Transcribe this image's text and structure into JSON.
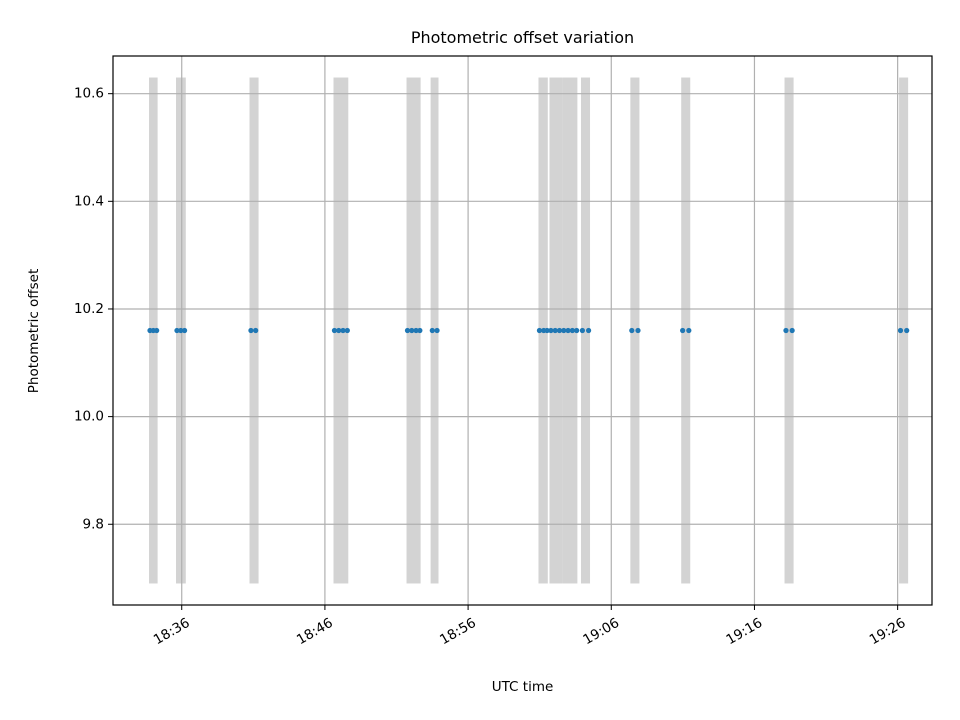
{
  "chart_data": {
    "type": "scatter",
    "title": "Photometric offset variation",
    "xlabel": "UTC time",
    "ylabel": "Photometric offset",
    "x_axis": {
      "scale": "time",
      "xlim": [
        "18:31:12",
        "19:28:24"
      ],
      "tick_labels": [
        "18:36",
        "18:46",
        "18:56",
        "19:06",
        "19:16",
        "19:26"
      ],
      "tick_label_rotation": "30 degrees"
    },
    "y_axis": {
      "ylim": [
        9.65,
        10.67
      ],
      "ticks": [
        9.8,
        10.0,
        10.2,
        10.4,
        10.6
      ],
      "tick_labels": [
        "9.8",
        "10.0",
        "10.2",
        "10.4",
        "10.6"
      ]
    },
    "grid": true,
    "colors": {
      "points": "#1f77b4",
      "bands": "#d3d3d3",
      "grid": "#b0b0b0",
      "axes": "#000000"
    },
    "bands": {
      "y_range": [
        9.69,
        10.63
      ],
      "intervals": [
        [
          "18:33:43",
          "18:34:19"
        ],
        [
          "18:35:36",
          "18:36:17"
        ],
        [
          "18:40:44",
          "18:41:22"
        ],
        [
          "18:46:36",
          "18:47:38"
        ],
        [
          "18:51:42",
          "18:52:41"
        ],
        [
          "18:53:23",
          "18:53:56"
        ],
        [
          "19:00:55",
          "19:01:34"
        ],
        [
          "19:01:41",
          "19:02:36"
        ],
        [
          "19:02:36",
          "19:03:38"
        ],
        [
          "19:03:53",
          "19:04:31"
        ],
        [
          "19:07:20",
          "19:07:58"
        ],
        [
          "19:10:53",
          "19:11:31"
        ],
        [
          "19:18:06",
          "19:18:44"
        ],
        [
          "19:26:06",
          "19:26:44"
        ]
      ]
    },
    "series": [
      {
        "points": [
          {
            "x": "18:33:47",
            "y": 10.16
          },
          {
            "x": "18:34:01",
            "y": 10.16
          },
          {
            "x": "18:34:15",
            "y": 10.16
          },
          {
            "x": "18:35:40",
            "y": 10.16
          },
          {
            "x": "18:35:56",
            "y": 10.16
          },
          {
            "x": "18:36:12",
            "y": 10.16
          },
          {
            "x": "18:40:50",
            "y": 10.16
          },
          {
            "x": "18:41:10",
            "y": 10.16
          },
          {
            "x": "18:46:40",
            "y": 10.16
          },
          {
            "x": "18:46:58",
            "y": 10.16
          },
          {
            "x": "18:47:16",
            "y": 10.16
          },
          {
            "x": "18:47:34",
            "y": 10.16
          },
          {
            "x": "18:51:46",
            "y": 10.16
          },
          {
            "x": "18:52:04",
            "y": 10.16
          },
          {
            "x": "18:52:22",
            "y": 10.16
          },
          {
            "x": "18:52:38",
            "y": 10.16
          },
          {
            "x": "18:53:30",
            "y": 10.16
          },
          {
            "x": "18:53:50",
            "y": 10.16
          },
          {
            "x": "19:00:59",
            "y": 10.16
          },
          {
            "x": "19:01:17",
            "y": 10.16
          },
          {
            "x": "19:01:31",
            "y": 10.16
          },
          {
            "x": "19:01:47",
            "y": 10.16
          },
          {
            "x": "19:02:05",
            "y": 10.16
          },
          {
            "x": "19:02:23",
            "y": 10.16
          },
          {
            "x": "19:02:41",
            "y": 10.16
          },
          {
            "x": "19:02:59",
            "y": 10.16
          },
          {
            "x": "19:03:17",
            "y": 10.16
          },
          {
            "x": "19:03:35",
            "y": 10.16
          },
          {
            "x": "19:03:59",
            "y": 10.16
          },
          {
            "x": "19:04:25",
            "y": 10.16
          },
          {
            "x": "19:07:26",
            "y": 10.16
          },
          {
            "x": "19:07:52",
            "y": 10.16
          },
          {
            "x": "19:10:59",
            "y": 10.16
          },
          {
            "x": "19:11:25",
            "y": 10.16
          },
          {
            "x": "19:18:12",
            "y": 10.16
          },
          {
            "x": "19:18:38",
            "y": 10.16
          },
          {
            "x": "19:26:12",
            "y": 10.16
          },
          {
            "x": "19:26:38",
            "y": 10.16
          }
        ]
      }
    ]
  }
}
